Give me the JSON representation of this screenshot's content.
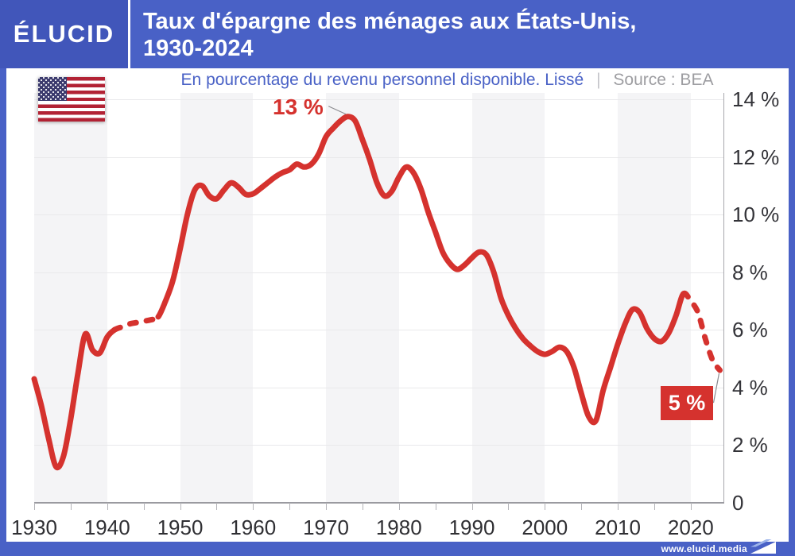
{
  "header": {
    "logo_text": "ÉLUCID",
    "title_line1": "Taux d'épargne des ménages aux États-Unis,",
    "title_line2": "1930-2024"
  },
  "subtitle": {
    "text": "En pourcentage du revenu personnel disponible. Lissé",
    "separator": "|",
    "source": "Source : BEA"
  },
  "icons": {
    "flag": "us-flag",
    "footer_mark": "elucid-logo-mark"
  },
  "footer": {
    "website": "www.elucid.media"
  },
  "colors": {
    "accent_blue": "#4961c6",
    "logo_blue": "#4156ba",
    "line_red": "#d5322e",
    "band_gray": "#f4f4f6",
    "grid_gray": "#e9e9eb",
    "source_gray": "#9d9da1"
  },
  "chart_data": {
    "type": "line",
    "title": "Taux d'épargne des ménages aux États-Unis, 1930-2024",
    "ylabel": "En pourcentage du revenu personnel disponible. Lissé",
    "source": "BEA",
    "grid": "horizontal",
    "legend": null,
    "xlim": [
      1930,
      2024.6
    ],
    "ylim": [
      0,
      14.22
    ],
    "x": [
      1930,
      1931,
      1932,
      1933,
      1934,
      1935,
      1936,
      1937,
      1938,
      1939,
      1940,
      1941,
      1942,
      1943,
      1944,
      1945,
      1946,
      1947,
      1948,
      1949,
      1950,
      1951,
      1952,
      1953,
      1954,
      1955,
      1956,
      1957,
      1958,
      1959,
      1960,
      1961,
      1962,
      1963,
      1964,
      1965,
      1966,
      1967,
      1968,
      1969,
      1970,
      1971,
      1972,
      1973,
      1974,
      1975,
      1976,
      1977,
      1978,
      1979,
      1980,
      1981,
      1982,
      1983,
      1984,
      1985,
      1986,
      1987,
      1988,
      1989,
      1990,
      1991,
      1992,
      1993,
      1994,
      1995,
      1996,
      1997,
      1998,
      1999,
      2000,
      2001,
      2002,
      2003,
      2004,
      2005,
      2006,
      2007,
      2008,
      2009,
      2010,
      2011,
      2012,
      2013,
      2014,
      2015,
      2016,
      2017,
      2018,
      2019,
      2020,
      2021,
      2022,
      2023,
      2024
    ],
    "values": [
      4.3,
      3.35,
      2.2,
      1.25,
      1.6,
      2.9,
      4.5,
      5.85,
      5.3,
      5.2,
      5.75,
      6.0,
      6.1,
      6.2,
      6.25,
      6.3,
      6.35,
      6.45,
      7.0,
      7.7,
      8.8,
      10.0,
      10.85,
      11.0,
      10.65,
      10.55,
      10.85,
      11.1,
      10.95,
      10.7,
      10.72,
      10.9,
      11.1,
      11.3,
      11.45,
      11.55,
      11.75,
      11.65,
      11.75,
      12.1,
      12.7,
      13.0,
      13.25,
      13.4,
      13.25,
      12.6,
      11.9,
      11.1,
      10.65,
      10.8,
      11.3,
      11.65,
      11.45,
      10.9,
      10.1,
      9.4,
      8.7,
      8.3,
      8.1,
      8.25,
      8.5,
      8.7,
      8.6,
      8.0,
      7.1,
      6.5,
      6.05,
      5.7,
      5.45,
      5.25,
      5.15,
      5.25,
      5.4,
      5.25,
      4.7,
      3.8,
      3.0,
      2.85,
      3.9,
      4.7,
      5.5,
      6.2,
      6.7,
      6.6,
      6.05,
      5.7,
      5.6,
      5.9,
      6.5,
      7.25,
      7.0,
      6.6,
      5.7,
      4.95,
      4.6
    ],
    "dashed_ranges": [
      [
        1941,
        1947
      ],
      [
        2019,
        2024
      ]
    ],
    "xticks_labeled": [
      1930,
      1940,
      1950,
      1960,
      1970,
      1980,
      1990,
      2000,
      2010,
      2020
    ],
    "xticks_all": [
      1930,
      1935,
      1940,
      1945,
      1950,
      1955,
      1960,
      1965,
      1970,
      1975,
      1980,
      1985,
      1990,
      1995,
      2000,
      2005,
      2010,
      2015,
      2020
    ],
    "yticks": [
      {
        "value": 0,
        "label": "0"
      },
      {
        "value": 2,
        "label": "2 %"
      },
      {
        "value": 4,
        "label": "4 %"
      },
      {
        "value": 6,
        "label": "6 %"
      },
      {
        "value": 8,
        "label": "8 %"
      },
      {
        "value": 10,
        "label": "10 %"
      },
      {
        "value": 12,
        "label": "12 %"
      },
      {
        "value": 14,
        "label": "14 %"
      }
    ],
    "shaded_decades": [
      1930,
      1950,
      1970,
      1990,
      2010
    ],
    "line_color": "#d5322e",
    "annotations": [
      {
        "label": "13 %",
        "year": 1973.4,
        "value": 13.4
      },
      {
        "label": "5 %",
        "year": 2024,
        "value": 4.6
      }
    ]
  }
}
